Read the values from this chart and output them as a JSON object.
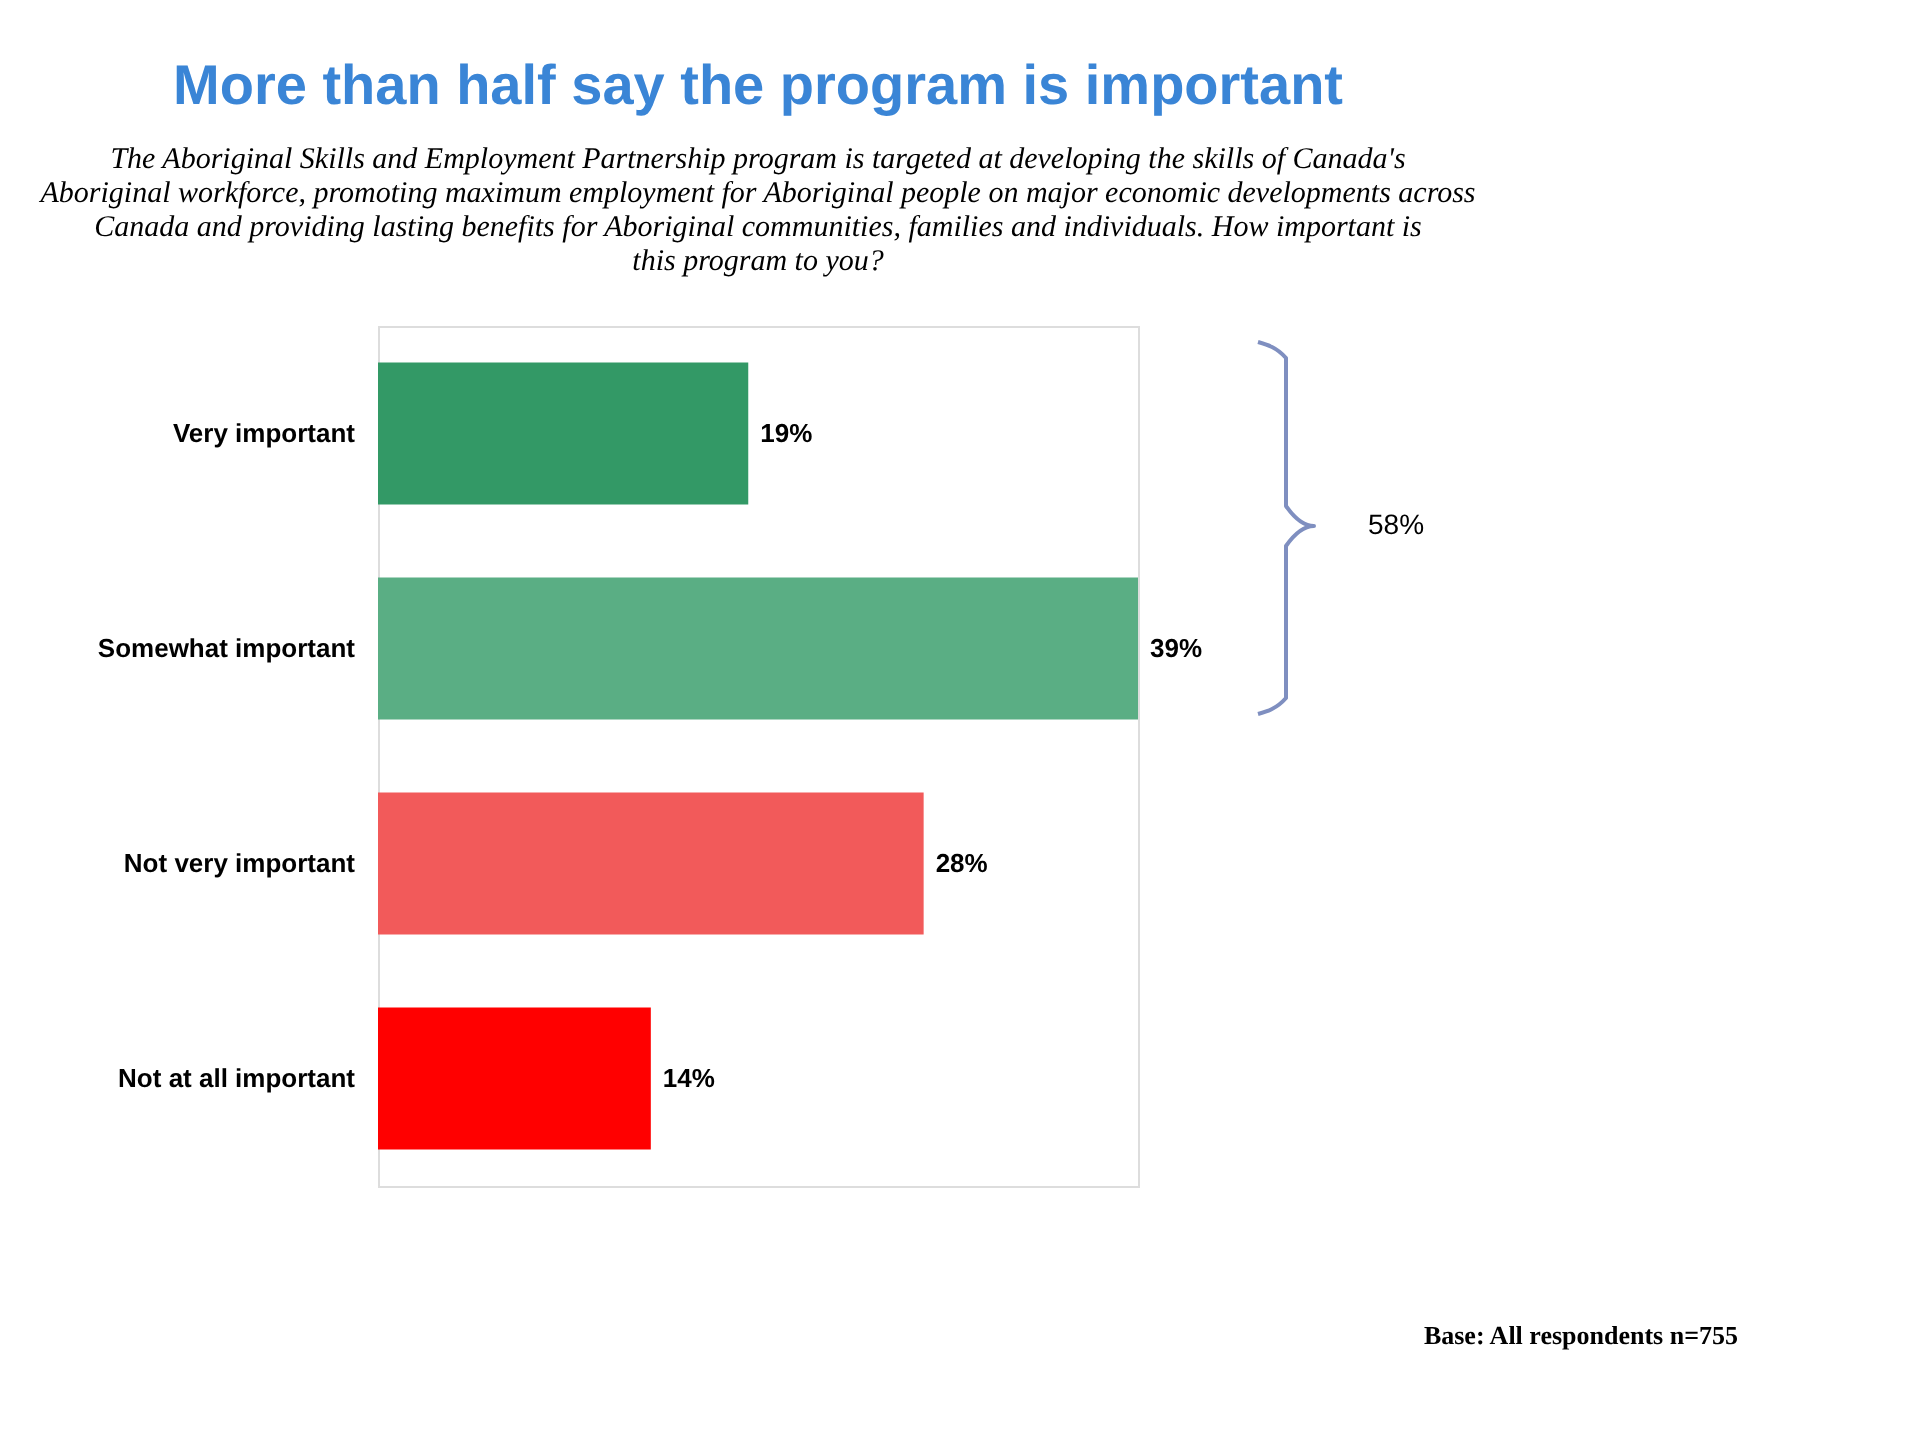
{
  "chart_data": {
    "type": "bar",
    "orientation": "horizontal",
    "title": "More than half say the program is important",
    "subtitle": "The Aboriginal Skills and Employment Partnership program is targeted at developing the skills of Canada's Aboriginal workforce, promoting maximum employment for Aboriginal people on major economic developments across Canada and providing lasting benefits for Aboriginal communities, families and individuals. How important is this program to you?",
    "categories": [
      "Very important",
      "Somewhat important",
      "Not very important",
      "Not at all important"
    ],
    "values": [
      19,
      39,
      28,
      14
    ],
    "colors": [
      "#339966",
      "#5aae84",
      "#f25a5a",
      "#ff0000"
    ],
    "value_labels": [
      "19%",
      "39%",
      "28%",
      "14%"
    ],
    "annotations": [
      "58%",
      "Base: All respondents n=755"
    ]
  }
}
